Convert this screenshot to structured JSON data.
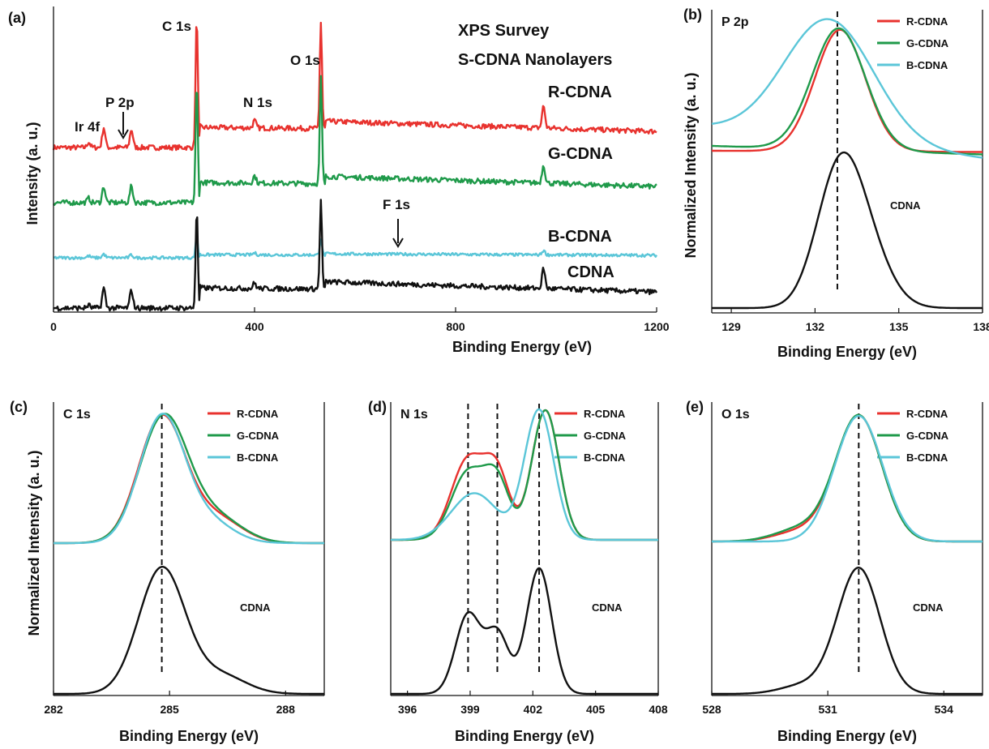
{
  "figure": {
    "ylabel_a": "Intensity (a. u.)",
    "ylabel_b": "Normalized Intensity (a. u.)",
    "ylabel_cde": "Normalized Intensity (a. u.)"
  },
  "colors": {
    "R-CDNA": "#e8322e",
    "G-CDNA": "#1f9a4a",
    "B-CDNA": "#5bc6d8",
    "CDNA": "#111111"
  },
  "chart_data": [
    {
      "panel": "(a)",
      "type": "line",
      "title": "XPS Survey",
      "subtitle": "S-CDNA Nanolayers",
      "xlabel": "Binding Energy (eV)",
      "ylabel": "Intensity (a. u.)",
      "xlim": [
        0,
        1200
      ],
      "xticks": [
        "0",
        "400",
        "800",
        "1200"
      ],
      "series": [
        {
          "name": "R-CDNA",
          "offset": 3.0,
          "peaks": [
            [
              70,
              0.15
            ],
            [
              100,
              0.55
            ],
            [
              155,
              0.5
            ],
            [
              285,
              3.6
            ],
            [
              400,
              0.2
            ],
            [
              532,
              2.9
            ],
            [
              975,
              0.6
            ]
          ]
        },
        {
          "name": "G-CDNA",
          "offset": 2.0,
          "peaks": [
            [
              70,
              0.12
            ],
            [
              100,
              0.45
            ],
            [
              155,
              0.45
            ],
            [
              285,
              3.3
            ],
            [
              400,
              0.2
            ],
            [
              532,
              2.9
            ],
            [
              975,
              0.5
            ]
          ]
        },
        {
          "name": "B-CDNA",
          "offset": 1.0,
          "peaks": [
            [
              70,
              0.05
            ],
            [
              100,
              0.1
            ],
            [
              155,
              0.08
            ],
            [
              285,
              0.6
            ],
            [
              400,
              0.05
            ],
            [
              532,
              0.45
            ],
            [
              975,
              0.12
            ]
          ]
        },
        {
          "name": "CDNA",
          "offset": 0.0,
          "peaks": [
            [
              70,
              0.08
            ],
            [
              100,
              0.55
            ],
            [
              155,
              0.5
            ],
            [
              285,
              2.7
            ],
            [
              400,
              0.15
            ],
            [
              532,
              2.4
            ],
            [
              975,
              0.55
            ]
          ]
        }
      ],
      "annotations": [
        {
          "text": "Ir 4f",
          "x": 68
        },
        {
          "text": "P 2p",
          "x": 140
        },
        {
          "text": "C 1s",
          "x": 285
        },
        {
          "text": "O 1s",
          "x": 532
        },
        {
          "text": "N 1s",
          "x": 400
        },
        {
          "text": "F 1s",
          "x": 686
        }
      ],
      "series_labels": [
        "R-CDNA",
        "G-CDNA",
        "B-CDNA",
        "CDNA"
      ]
    },
    {
      "panel": "(b)",
      "type": "line",
      "title": "P 2p",
      "xlabel": "Binding Energy (eV)",
      "ylabel": "Normalized Intensity (a. u.)",
      "xlim": [
        128.3,
        138
      ],
      "xticks": [
        "129",
        "132",
        "135",
        "138"
      ],
      "dashed_line_x": 132.8,
      "legend": [
        "R-CDNA",
        "G-CDNA",
        "B-CDNA"
      ],
      "reference_label": "CDNA",
      "series": [
        {
          "name": "R-CDNA",
          "center": 132.9,
          "width": 0.9,
          "baseline_left": 0.06,
          "baseline_right": 0.05
        },
        {
          "name": "G-CDNA",
          "center": 132.85,
          "width": 0.95,
          "baseline_left": 0.1,
          "baseline_right": 0.03
        },
        {
          "name": "B-CDNA",
          "center": 132.5,
          "width": 1.6,
          "baseline_left": 0.25,
          "baseline_right": 0.0
        },
        {
          "name": "CDNA",
          "center": 132.8,
          "width": 0.8,
          "shoulder": [
            133.7,
            0.55
          ]
        }
      ]
    },
    {
      "panel": "(c)",
      "type": "line",
      "title": "C 1s",
      "xlabel": "Binding Energy (eV)",
      "ylabel": "Normalized Intensity (a. u.)",
      "xlim": [
        282,
        289
      ],
      "xticks": [
        "282",
        "285",
        "288"
      ],
      "dashed_line_x": 284.8,
      "legend": [
        "R-CDNA",
        "G-CDNA",
        "B-CDNA"
      ],
      "reference_label": "CDNA",
      "series": [
        {
          "name": "R-CDNA",
          "center": 284.8,
          "width": 0.6,
          "shoulder": [
            286.2,
            0.2
          ]
        },
        {
          "name": "G-CDNA",
          "center": 284.85,
          "width": 0.62,
          "shoulder": [
            286.2,
            0.2
          ]
        },
        {
          "name": "B-CDNA",
          "center": 284.8,
          "width": 0.58,
          "shoulder": [
            286.0,
            0.17
          ]
        },
        {
          "name": "CDNA",
          "center": 284.8,
          "width": 0.6,
          "shoulder": [
            286.3,
            0.15
          ]
        }
      ]
    },
    {
      "panel": "(d)",
      "type": "line",
      "title": "N 1s",
      "xlabel": "Binding Energy (eV)",
      "ylabel": "Normalized Intensity (a. u.)",
      "xlim": [
        395.2,
        408
      ],
      "xticks": [
        "396",
        "399",
        "402",
        "405",
        "408"
      ],
      "dashed_lines_x": [
        398.9,
        400.3,
        402.3
      ],
      "legend": [
        "R-CDNA",
        "G-CDNA",
        "B-CDNA"
      ],
      "reference_label": "CDNA",
      "series": [
        {
          "name": "R-CDNA",
          "components": [
            [
              398.9,
              0.62,
              0.8
            ],
            [
              400.3,
              0.48,
              0.6
            ],
            [
              402.6,
              1.0,
              0.65
            ]
          ]
        },
        {
          "name": "G-CDNA",
          "components": [
            [
              398.9,
              0.52,
              0.8
            ],
            [
              400.3,
              0.43,
              0.6
            ],
            [
              402.6,
              1.0,
              0.65
            ]
          ]
        },
        {
          "name": "B-CDNA",
          "components": [
            [
              399.2,
              0.36,
              1.1
            ],
            [
              402.3,
              1.0,
              0.7
            ]
          ]
        },
        {
          "name": "CDNA",
          "components": [
            [
              398.9,
              0.63,
              0.6
            ],
            [
              400.3,
              0.48,
              0.55
            ],
            [
              402.3,
              1.0,
              0.6
            ]
          ]
        }
      ]
    },
    {
      "panel": "(e)",
      "type": "line",
      "title": "O 1s",
      "xlabel": "Binding Energy (eV)",
      "ylabel": "Normalized Intensity (a. u.)",
      "xlim": [
        528,
        535
      ],
      "xticks": [
        "528",
        "531",
        "534"
      ],
      "dashed_line_x": 531.8,
      "legend": [
        "R-CDNA",
        "G-CDNA",
        "B-CDNA"
      ],
      "reference_label": "CDNA",
      "series": [
        {
          "name": "R-CDNA",
          "center": 531.8,
          "width": 0.6,
          "shoulder": [
            530.3,
            0.08
          ]
        },
        {
          "name": "G-CDNA",
          "center": 531.8,
          "width": 0.6,
          "shoulder": [
            530.3,
            0.1
          ]
        },
        {
          "name": "B-CDNA",
          "center": 531.8,
          "width": 0.62,
          "shoulder": [
            530.3,
            0.0
          ]
        },
        {
          "name": "CDNA",
          "center": 531.8,
          "width": 0.55,
          "shoulder": [
            530.4,
            0.07
          ]
        }
      ]
    }
  ]
}
